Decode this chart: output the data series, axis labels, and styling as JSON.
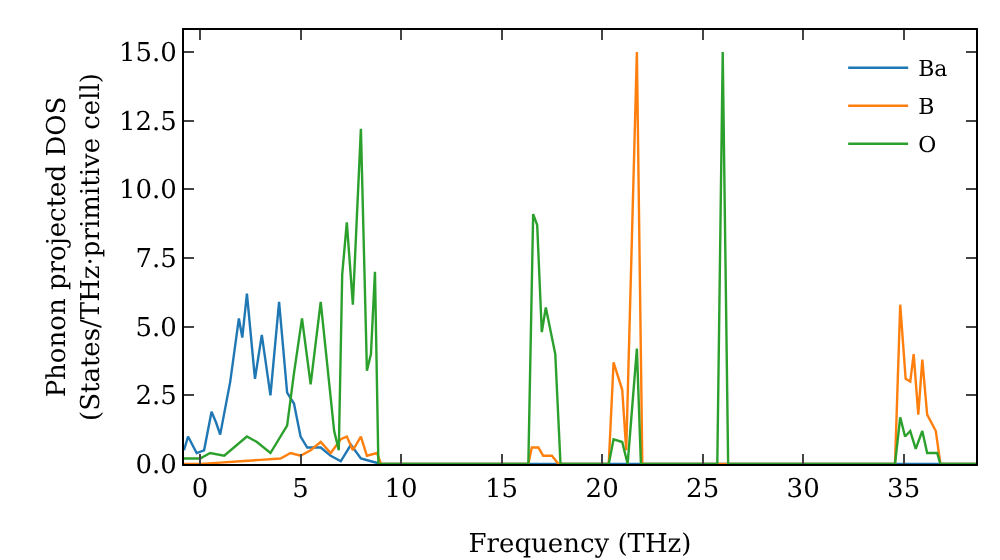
{
  "chart_data": {
    "type": "line",
    "xlabel": "Frequency (THz)",
    "ylabel": "Phonon projected DOS\n(States/THz·primitive cell)",
    "xlim": [
      -0.8,
      38.6
    ],
    "ylim": [
      0,
      15.8
    ],
    "xticks": [
      0,
      5,
      10,
      15,
      20,
      25,
      30,
      35
    ],
    "yticks": [
      {
        "value": 0,
        "label": "0.0"
      },
      {
        "value": 2.5,
        "label": "2.5"
      },
      {
        "value": 5,
        "label": "5.0"
      },
      {
        "value": 7.5,
        "label": "7.5"
      },
      {
        "value": 10,
        "label": "10.0"
      },
      {
        "value": 12.5,
        "label": "12.5"
      },
      {
        "value": 15,
        "label": "15.0"
      }
    ],
    "grid": false,
    "legend": "top right",
    "marker": "none",
    "line_style": "solid",
    "series": [
      {
        "name": "Ba",
        "color": "#1f77b4",
        "x": [
          -0.8,
          -0.6,
          -0.17,
          0.2,
          0.57,
          0.8,
          1.0,
          1.5,
          1.93,
          2.1,
          2.33,
          2.73,
          3.07,
          3.5,
          3.93,
          4.33,
          4.67,
          5.0,
          5.33,
          6.0,
          6.5,
          7.0,
          7.5,
          8.0,
          8.5,
          9.0,
          38.6
        ],
        "values": [
          0.5,
          1.0,
          0.4,
          0.5,
          1.9,
          1.5,
          1.07,
          3.0,
          5.3,
          4.6,
          6.2,
          3.1,
          4.7,
          2.5,
          5.9,
          2.6,
          2.2,
          1.0,
          0.6,
          0.6,
          0.3,
          0.1,
          0.7,
          0.2,
          0.1,
          0,
          0
        ]
      },
      {
        "name": "B",
        "color": "#ff7f0e",
        "x": [
          -0.8,
          0,
          1,
          2,
          3,
          4,
          4.5,
          5,
          5.5,
          6,
          6.5,
          7,
          7.3,
          7.6,
          8,
          8.3,
          8.8,
          9,
          16.33,
          16.5,
          16.83,
          17.07,
          17.5,
          17.83,
          20.33,
          20.57,
          21.0,
          21.2,
          21.73,
          22.0,
          34.57,
          34.83,
          35.1,
          35.33,
          35.5,
          35.73,
          35.93,
          36.17,
          36.6,
          36.83,
          38.6
        ],
        "values": [
          0,
          0,
          0.05,
          0.1,
          0.15,
          0.2,
          0.4,
          0.3,
          0.5,
          0.8,
          0.4,
          0.9,
          1.0,
          0.5,
          1.0,
          0.3,
          0.4,
          0,
          0,
          0.6,
          0.6,
          0.3,
          0.3,
          0,
          0,
          3.7,
          2.7,
          0.5,
          15.0,
          0,
          0,
          5.8,
          3.1,
          3.0,
          4.0,
          1.8,
          3.8,
          1.8,
          1.2,
          0,
          0
        ]
      },
      {
        "name": "O",
        "color": "#2ca02c",
        "x": [
          -0.8,
          0,
          0.5,
          1.2,
          2.33,
          2.83,
          3.5,
          4.33,
          4.67,
          5.07,
          5.5,
          6.0,
          6.67,
          6.9,
          7.07,
          7.3,
          7.6,
          8.0,
          8.3,
          8.5,
          8.7,
          8.87,
          16.33,
          16.57,
          16.77,
          17.0,
          17.2,
          17.67,
          17.93,
          20.33,
          20.57,
          21.0,
          21.27,
          21.73,
          21.93,
          25.73,
          26.0,
          26.27,
          34.57,
          34.83,
          35.07,
          35.33,
          35.6,
          35.93,
          36.17,
          36.67,
          36.83,
          38.6
        ],
        "values": [
          0.2,
          0.2,
          0.4,
          0.3,
          1.0,
          0.8,
          0.4,
          1.4,
          3.3,
          5.3,
          2.9,
          5.9,
          1.2,
          0.5,
          6.9,
          8.8,
          5.8,
          12.2,
          3.4,
          4.0,
          7.0,
          0,
          0,
          9.1,
          8.7,
          4.8,
          5.7,
          4.0,
          0,
          0,
          0.9,
          0.8,
          0,
          4.2,
          0,
          0,
          15.0,
          0,
          0,
          1.7,
          1.0,
          1.2,
          0.55,
          1.2,
          0.4,
          0.4,
          0,
          0
        ]
      }
    ]
  }
}
